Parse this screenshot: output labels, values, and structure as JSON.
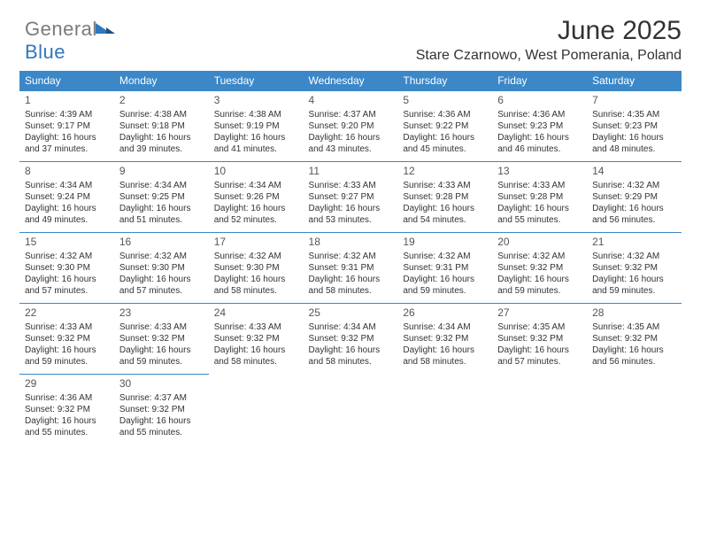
{
  "logo": {
    "text1": "General",
    "text2": "Blue"
  },
  "header": {
    "month_title": "June 2025",
    "location": "Stare Czarnowo, West Pomerania, Poland"
  },
  "colors": {
    "header_bg": "#3b87c8",
    "header_text": "#ffffff",
    "border": "#3b87c8",
    "body_text": "#333333",
    "logo_gray": "#7b7b7b",
    "logo_blue": "#2f78bd",
    "background": "#ffffff"
  },
  "typography": {
    "month_title_fontsize": 30,
    "location_fontsize": 16,
    "dayheader_fontsize": 12,
    "cell_fontsize": 10,
    "daynum_fontsize": 12,
    "font_family": "Arial"
  },
  "calendar": {
    "day_headers": [
      "Sunday",
      "Monday",
      "Tuesday",
      "Wednesday",
      "Thursday",
      "Friday",
      "Saturday"
    ],
    "weeks": [
      [
        {
          "day": "1",
          "sunrise": "Sunrise: 4:39 AM",
          "sunset": "Sunset: 9:17 PM",
          "daylight": "Daylight: 16 hours and 37 minutes."
        },
        {
          "day": "2",
          "sunrise": "Sunrise: 4:38 AM",
          "sunset": "Sunset: 9:18 PM",
          "daylight": "Daylight: 16 hours and 39 minutes."
        },
        {
          "day": "3",
          "sunrise": "Sunrise: 4:38 AM",
          "sunset": "Sunset: 9:19 PM",
          "daylight": "Daylight: 16 hours and 41 minutes."
        },
        {
          "day": "4",
          "sunrise": "Sunrise: 4:37 AM",
          "sunset": "Sunset: 9:20 PM",
          "daylight": "Daylight: 16 hours and 43 minutes."
        },
        {
          "day": "5",
          "sunrise": "Sunrise: 4:36 AM",
          "sunset": "Sunset: 9:22 PM",
          "daylight": "Daylight: 16 hours and 45 minutes."
        },
        {
          "day": "6",
          "sunrise": "Sunrise: 4:36 AM",
          "sunset": "Sunset: 9:23 PM",
          "daylight": "Daylight: 16 hours and 46 minutes."
        },
        {
          "day": "7",
          "sunrise": "Sunrise: 4:35 AM",
          "sunset": "Sunset: 9:23 PM",
          "daylight": "Daylight: 16 hours and 48 minutes."
        }
      ],
      [
        {
          "day": "8",
          "sunrise": "Sunrise: 4:34 AM",
          "sunset": "Sunset: 9:24 PM",
          "daylight": "Daylight: 16 hours and 49 minutes."
        },
        {
          "day": "9",
          "sunrise": "Sunrise: 4:34 AM",
          "sunset": "Sunset: 9:25 PM",
          "daylight": "Daylight: 16 hours and 51 minutes."
        },
        {
          "day": "10",
          "sunrise": "Sunrise: 4:34 AM",
          "sunset": "Sunset: 9:26 PM",
          "daylight": "Daylight: 16 hours and 52 minutes."
        },
        {
          "day": "11",
          "sunrise": "Sunrise: 4:33 AM",
          "sunset": "Sunset: 9:27 PM",
          "daylight": "Daylight: 16 hours and 53 minutes."
        },
        {
          "day": "12",
          "sunrise": "Sunrise: 4:33 AM",
          "sunset": "Sunset: 9:28 PM",
          "daylight": "Daylight: 16 hours and 54 minutes."
        },
        {
          "day": "13",
          "sunrise": "Sunrise: 4:33 AM",
          "sunset": "Sunset: 9:28 PM",
          "daylight": "Daylight: 16 hours and 55 minutes."
        },
        {
          "day": "14",
          "sunrise": "Sunrise: 4:32 AM",
          "sunset": "Sunset: 9:29 PM",
          "daylight": "Daylight: 16 hours and 56 minutes."
        }
      ],
      [
        {
          "day": "15",
          "sunrise": "Sunrise: 4:32 AM",
          "sunset": "Sunset: 9:30 PM",
          "daylight": "Daylight: 16 hours and 57 minutes."
        },
        {
          "day": "16",
          "sunrise": "Sunrise: 4:32 AM",
          "sunset": "Sunset: 9:30 PM",
          "daylight": "Daylight: 16 hours and 57 minutes."
        },
        {
          "day": "17",
          "sunrise": "Sunrise: 4:32 AM",
          "sunset": "Sunset: 9:30 PM",
          "daylight": "Daylight: 16 hours and 58 minutes."
        },
        {
          "day": "18",
          "sunrise": "Sunrise: 4:32 AM",
          "sunset": "Sunset: 9:31 PM",
          "daylight": "Daylight: 16 hours and 58 minutes."
        },
        {
          "day": "19",
          "sunrise": "Sunrise: 4:32 AM",
          "sunset": "Sunset: 9:31 PM",
          "daylight": "Daylight: 16 hours and 59 minutes."
        },
        {
          "day": "20",
          "sunrise": "Sunrise: 4:32 AM",
          "sunset": "Sunset: 9:32 PM",
          "daylight": "Daylight: 16 hours and 59 minutes."
        },
        {
          "day": "21",
          "sunrise": "Sunrise: 4:32 AM",
          "sunset": "Sunset: 9:32 PM",
          "daylight": "Daylight: 16 hours and 59 minutes."
        }
      ],
      [
        {
          "day": "22",
          "sunrise": "Sunrise: 4:33 AM",
          "sunset": "Sunset: 9:32 PM",
          "daylight": "Daylight: 16 hours and 59 minutes."
        },
        {
          "day": "23",
          "sunrise": "Sunrise: 4:33 AM",
          "sunset": "Sunset: 9:32 PM",
          "daylight": "Daylight: 16 hours and 59 minutes."
        },
        {
          "day": "24",
          "sunrise": "Sunrise: 4:33 AM",
          "sunset": "Sunset: 9:32 PM",
          "daylight": "Daylight: 16 hours and 58 minutes."
        },
        {
          "day": "25",
          "sunrise": "Sunrise: 4:34 AM",
          "sunset": "Sunset: 9:32 PM",
          "daylight": "Daylight: 16 hours and 58 minutes."
        },
        {
          "day": "26",
          "sunrise": "Sunrise: 4:34 AM",
          "sunset": "Sunset: 9:32 PM",
          "daylight": "Daylight: 16 hours and 58 minutes."
        },
        {
          "day": "27",
          "sunrise": "Sunrise: 4:35 AM",
          "sunset": "Sunset: 9:32 PM",
          "daylight": "Daylight: 16 hours and 57 minutes."
        },
        {
          "day": "28",
          "sunrise": "Sunrise: 4:35 AM",
          "sunset": "Sunset: 9:32 PM",
          "daylight": "Daylight: 16 hours and 56 minutes."
        }
      ],
      [
        {
          "day": "29",
          "sunrise": "Sunrise: 4:36 AM",
          "sunset": "Sunset: 9:32 PM",
          "daylight": "Daylight: 16 hours and 55 minutes."
        },
        {
          "day": "30",
          "sunrise": "Sunrise: 4:37 AM",
          "sunset": "Sunset: 9:32 PM",
          "daylight": "Daylight: 16 hours and 55 minutes."
        },
        null,
        null,
        null,
        null,
        null
      ]
    ]
  }
}
